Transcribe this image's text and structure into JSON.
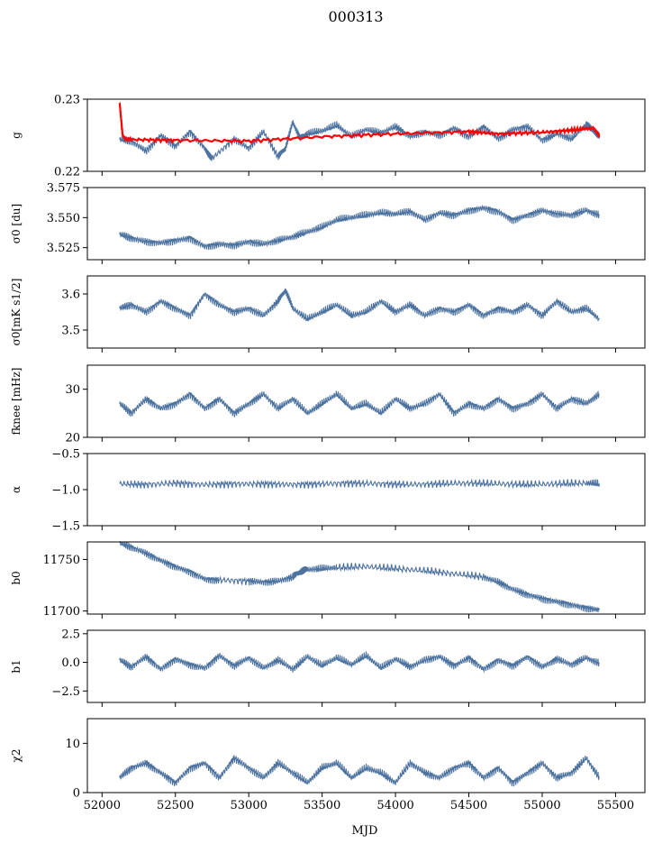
{
  "figure": {
    "title": "000313",
    "xlabel": "MJD"
  },
  "colors": {
    "series": "#4c72a0",
    "fit": "#ff0000",
    "axes": "#000000"
  },
  "chart_data": [
    {
      "type": "line",
      "ylabel": "g",
      "xlim": [
        51900,
        55700
      ],
      "ylim": [
        0.22,
        0.23
      ],
      "yticks": [
        0.22,
        0.23
      ],
      "yticklabels": [
        "0.22",
        "0.23"
      ],
      "series": [
        {
          "color": "#4c72a0",
          "x": [
            52120,
            52200,
            52300,
            52400,
            52500,
            52600,
            52700,
            52750,
            52900,
            53000,
            53100,
            53200,
            53250,
            53300,
            53350,
            53400,
            53500,
            53600,
            53700,
            53800,
            53900,
            54000,
            54100,
            54200,
            54300,
            54400,
            54500,
            54600,
            54700,
            54800,
            54900,
            55000,
            55100,
            55200,
            55300,
            55350,
            55390
          ],
          "y": [
            0.2244,
            0.2242,
            0.2228,
            0.225,
            0.2235,
            0.2255,
            0.2232,
            0.2218,
            0.2245,
            0.2232,
            0.2255,
            0.222,
            0.2232,
            0.2268,
            0.2245,
            0.2252,
            0.2256,
            0.2264,
            0.2248,
            0.2258,
            0.2253,
            0.2262,
            0.2248,
            0.2255,
            0.225,
            0.226,
            0.2248,
            0.2262,
            0.2245,
            0.2258,
            0.2262,
            0.2243,
            0.2252,
            0.2245,
            0.2265,
            0.2255,
            0.2248
          ]
        },
        {
          "color": "#ff0000",
          "x": [
            52120,
            52140,
            52160,
            52200,
            52500,
            53000,
            53500,
            54000,
            54500,
            54700,
            55000,
            55200,
            55350,
            55390
          ],
          "y": [
            0.2295,
            0.225,
            0.2245,
            0.2244,
            0.2243,
            0.2242,
            0.2248,
            0.2252,
            0.2255,
            0.2252,
            0.2254,
            0.2257,
            0.226,
            0.2249
          ]
        }
      ]
    },
    {
      "type": "line",
      "ylabel": "σ0 [du]",
      "xlim": [
        51900,
        55700
      ],
      "ylim": [
        3.515,
        3.575
      ],
      "yticks": [
        3.525,
        3.55,
        3.575
      ],
      "yticklabels": [
        "3.525",
        "3.550",
        "3.575"
      ],
      "series": [
        {
          "color": "#4c72a0",
          "x": [
            52120,
            52200,
            52300,
            52400,
            52500,
            52600,
            52700,
            52800,
            52900,
            53000,
            53100,
            53200,
            53300,
            53400,
            53500,
            53600,
            53700,
            53800,
            53900,
            54000,
            54100,
            54200,
            54300,
            54400,
            54500,
            54600,
            54700,
            54800,
            54900,
            55000,
            55100,
            55200,
            55300,
            55390
          ],
          "y": [
            3.536,
            3.533,
            3.53,
            3.529,
            3.531,
            3.533,
            3.526,
            3.528,
            3.527,
            3.53,
            3.528,
            3.531,
            3.534,
            3.538,
            3.542,
            3.548,
            3.55,
            3.552,
            3.554,
            3.553,
            3.555,
            3.548,
            3.554,
            3.552,
            3.556,
            3.558,
            3.555,
            3.548,
            3.552,
            3.556,
            3.553,
            3.552,
            3.556,
            3.552
          ]
        }
      ]
    },
    {
      "type": "line",
      "ylabel": "σ0[mK s1/2]",
      "xlim": [
        51900,
        55700
      ],
      "ylim": [
        3.45,
        3.65
      ],
      "yticks": [
        3.5,
        3.6
      ],
      "yticklabels": [
        "3.5",
        "3.6"
      ],
      "series": [
        {
          "color": "#4c72a0",
          "x": [
            52120,
            52200,
            52300,
            52400,
            52500,
            52600,
            52700,
            52800,
            52900,
            53000,
            53100,
            53200,
            53250,
            53300,
            53400,
            53500,
            53600,
            53700,
            53800,
            53900,
            54000,
            54100,
            54200,
            54300,
            54400,
            54500,
            54600,
            54700,
            54800,
            54900,
            55000,
            55100,
            55200,
            55300,
            55390
          ],
          "y": [
            3.56,
            3.57,
            3.55,
            3.58,
            3.56,
            3.54,
            3.6,
            3.57,
            3.55,
            3.56,
            3.54,
            3.58,
            3.61,
            3.56,
            3.53,
            3.55,
            3.57,
            3.54,
            3.55,
            3.58,
            3.55,
            3.57,
            3.54,
            3.56,
            3.55,
            3.57,
            3.54,
            3.56,
            3.55,
            3.57,
            3.54,
            3.58,
            3.55,
            3.56,
            3.53
          ]
        }
      ]
    },
    {
      "type": "line",
      "ylabel": "fknee [mHz]",
      "xlim": [
        51900,
        55700
      ],
      "ylim": [
        20,
        35
      ],
      "yticks": [
        20,
        30
      ],
      "yticklabels": [
        "20",
        "30"
      ],
      "series": [
        {
          "color": "#4c72a0",
          "x": [
            52120,
            52200,
            52300,
            52400,
            52500,
            52600,
            52700,
            52800,
            52900,
            53000,
            53100,
            53200,
            53300,
            53400,
            53500,
            53600,
            53700,
            53800,
            53900,
            54000,
            54100,
            54200,
            54300,
            54400,
            54500,
            54600,
            54700,
            54800,
            54900,
            55000,
            55100,
            55200,
            55300,
            55390
          ],
          "y": [
            27,
            25,
            28,
            26,
            27,
            29,
            26,
            28,
            25,
            27,
            29,
            26,
            28,
            25,
            27,
            29,
            26,
            27,
            25,
            28,
            26,
            27,
            29,
            25,
            27,
            26,
            28,
            26,
            27,
            29,
            26,
            28,
            27,
            29
          ]
        }
      ]
    },
    {
      "type": "line",
      "ylabel": "α",
      "xlim": [
        51900,
        55700
      ],
      "ylim": [
        -1.5,
        -0.5
      ],
      "yticks": [
        -1.5,
        -1.0,
        -0.5
      ],
      "yticklabels": [
        "−1.5",
        "−1.0",
        "−0.5"
      ],
      "series": [
        {
          "color": "#4c72a0",
          "x": [
            52120,
            52300,
            52500,
            52700,
            52900,
            53100,
            53300,
            53500,
            53700,
            53900,
            54100,
            54300,
            54500,
            54700,
            54900,
            55100,
            55300,
            55390
          ],
          "y": [
            -0.92,
            -0.93,
            -0.91,
            -0.93,
            -0.92,
            -0.92,
            -0.93,
            -0.92,
            -0.91,
            -0.92,
            -0.93,
            -0.92,
            -0.91,
            -0.92,
            -0.93,
            -0.92,
            -0.91,
            -0.92
          ]
        }
      ]
    },
    {
      "type": "line",
      "ylabel": "b0",
      "xlim": [
        51900,
        55700
      ],
      "ylim": [
        11697,
        11767
      ],
      "yticks": [
        11700,
        11750
      ],
      "yticklabels": [
        "11700",
        "11750"
      ],
      "series": [
        {
          "color": "#4c72a0",
          "x": [
            52120,
            52200,
            52300,
            52400,
            52500,
            52600,
            52700,
            52800,
            53000,
            53100,
            53200,
            53300,
            53350,
            53400,
            53500,
            53600,
            53800,
            54000,
            54200,
            54400,
            54600,
            54700,
            54800,
            54900,
            55000,
            55100,
            55200,
            55300,
            55390
          ],
          "y": [
            11766,
            11762,
            11756,
            11749,
            11743,
            11738,
            11731,
            11730,
            11729,
            11728,
            11729,
            11733,
            11738,
            11740,
            11741,
            11742,
            11743,
            11741,
            11739,
            11736,
            11733,
            11728,
            11721,
            11716,
            11712,
            11709,
            11706,
            11703,
            11701
          ]
        }
      ]
    },
    {
      "type": "line",
      "ylabel": "b1",
      "xlim": [
        51900,
        55700
      ],
      "ylim": [
        -3.5,
        2.8
      ],
      "yticks": [
        -2.5,
        0.0,
        2.5
      ],
      "yticklabels": [
        "−2.5",
        "0.0",
        "2.5"
      ],
      "series": [
        {
          "color": "#4c72a0",
          "x": [
            52120,
            52200,
            52300,
            52400,
            52500,
            52600,
            52700,
            52800,
            52900,
            53000,
            53100,
            53200,
            53300,
            53400,
            53500,
            53600,
            53700,
            53800,
            53900,
            54000,
            54100,
            54200,
            54300,
            54400,
            54500,
            54600,
            54700,
            54800,
            54900,
            55000,
            55100,
            55200,
            55300,
            55390
          ],
          "y": [
            0.2,
            -0.4,
            0.5,
            -0.6,
            0.3,
            -0.2,
            -0.5,
            0.6,
            -0.3,
            0.4,
            -0.5,
            0.2,
            -0.6,
            0.5,
            -0.3,
            0.4,
            -0.2,
            0.6,
            -0.5,
            0.3,
            -0.4,
            0.2,
            0.5,
            -0.3,
            0.4,
            -0.6,
            0.2,
            -0.3,
            0.5,
            -0.4,
            0.3,
            -0.2,
            0.4,
            -0.1
          ]
        }
      ]
    },
    {
      "type": "line",
      "ylabel": "χ2",
      "xlim": [
        51900,
        55700
      ],
      "ylim": [
        0,
        15
      ],
      "yticks": [
        0,
        10
      ],
      "yticklabels": [
        "0",
        "10"
      ],
      "series": [
        {
          "color": "#4c72a0",
          "x": [
            52120,
            52200,
            52300,
            52400,
            52500,
            52600,
            52700,
            52800,
            52900,
            53000,
            53100,
            53200,
            53300,
            53400,
            53500,
            53600,
            53700,
            53800,
            53900,
            54000,
            54100,
            54200,
            54300,
            54400,
            54500,
            54600,
            54700,
            54800,
            54900,
            55000,
            55100,
            55200,
            55300,
            55390
          ],
          "y": [
            3,
            5,
            6,
            4,
            2,
            5,
            6,
            3,
            7,
            5,
            3,
            6,
            4,
            2,
            5,
            6,
            3,
            5,
            4,
            2,
            6,
            4,
            3,
            5,
            6,
            3,
            5,
            2,
            4,
            6,
            3,
            4,
            7,
            3
          ]
        }
      ]
    }
  ],
  "xaxis": {
    "ticks": [
      52000,
      52500,
      53000,
      53500,
      54000,
      54500,
      55000,
      55500
    ],
    "ticklabels": [
      "52000",
      "52500",
      "53000",
      "53500",
      "54000",
      "54500",
      "55000",
      "55500"
    ]
  }
}
